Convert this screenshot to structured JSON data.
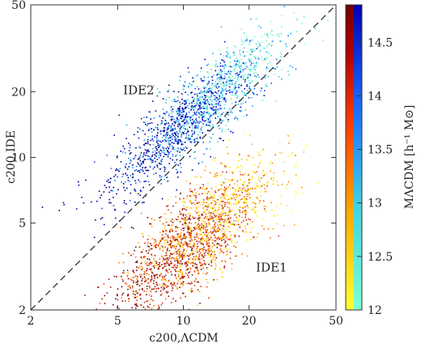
{
  "chart_data": {
    "type": "scatter",
    "xscale": "log",
    "yscale": "log",
    "xlim": [
      2,
      50
    ],
    "ylim": [
      2,
      50
    ],
    "xticks": [
      2,
      5,
      10,
      20,
      50
    ],
    "yticks": [
      2,
      5,
      10,
      20,
      50
    ],
    "xlabel": "c200,ΛCDM",
    "ylabel": "c200,IDE",
    "grid": false,
    "reference_line": {
      "style": "dashed",
      "from": [
        2,
        2
      ],
      "to": [
        50,
        50
      ]
    },
    "annotations": [
      {
        "text": "IDE2",
        "x": 5.3,
        "y": 19.5
      },
      {
        "text": "IDE1",
        "x": 21.5,
        "y": 3.0
      }
    ],
    "series": [
      {
        "label": "IDE2",
        "center_x": 11.5,
        "center_y": 16,
        "spread_along": 0.22,
        "spread_across": 0.07,
        "count": 1600,
        "colormap": [
          "#7fffd4",
          "#40e0d0",
          "#1e90ff",
          "#0000cd",
          "#00008b"
        ]
      },
      {
        "label": "IDE1",
        "center_x": 11.5,
        "center_y": 4.3,
        "spread_along": 0.2,
        "spread_across": 0.09,
        "count": 1900,
        "colormap": [
          "#ffff33",
          "#ffd700",
          "#ffa500",
          "#ff4500",
          "#b22222",
          "#800000"
        ]
      }
    ],
    "colorbar": {
      "label": "MΛCDM [h⁻¹ M⊙]",
      "range": [
        12,
        14.85
      ],
      "ticks": [
        "12",
        "12.5",
        "13",
        "13.5",
        "14",
        "14.5"
      ],
      "tick_values": [
        12,
        12.5,
        13,
        13.5,
        14,
        14.5
      ]
    }
  }
}
